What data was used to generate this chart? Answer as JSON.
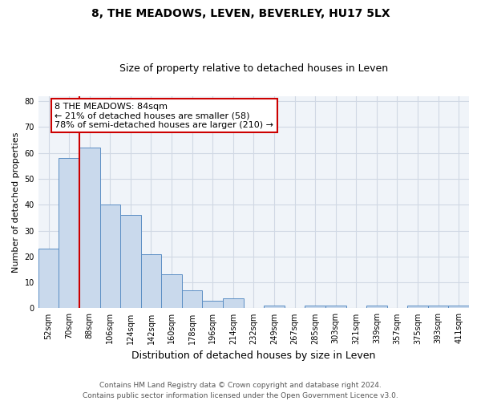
{
  "title": "8, THE MEADOWS, LEVEN, BEVERLEY, HU17 5LX",
  "subtitle": "Size of property relative to detached houses in Leven",
  "xlabel": "Distribution of detached houses by size in Leven",
  "ylabel": "Number of detached properties",
  "bar_labels": [
    "52sqm",
    "70sqm",
    "88sqm",
    "106sqm",
    "124sqm",
    "142sqm",
    "160sqm",
    "178sqm",
    "196sqm",
    "214sqm",
    "232sqm",
    "249sqm",
    "267sqm",
    "285sqm",
    "303sqm",
    "321sqm",
    "339sqm",
    "357sqm",
    "375sqm",
    "393sqm",
    "411sqm"
  ],
  "bar_heights": [
    23,
    58,
    62,
    40,
    36,
    21,
    13,
    7,
    3,
    4,
    0,
    1,
    0,
    1,
    1,
    0,
    1,
    0,
    1,
    1,
    1
  ],
  "bar_color": "#c9d9ec",
  "bar_edge_color": "#5b8ec4",
  "red_line_index": 2,
  "red_line_color": "#cc0000",
  "annotation_text": "8 THE MEADOWS: 84sqm\n← 21% of detached houses are smaller (58)\n78% of semi-detached houses are larger (210) →",
  "annotation_box_color": "#ffffff",
  "annotation_box_edge_color": "#cc0000",
  "ylim": [
    0,
    82
  ],
  "yticks": [
    0,
    10,
    20,
    30,
    40,
    50,
    60,
    70,
    80
  ],
  "grid_color": "#d0d8e4",
  "footer_text": "Contains HM Land Registry data © Crown copyright and database right 2024.\nContains public sector information licensed under the Open Government Licence v3.0.",
  "title_fontsize": 10,
  "subtitle_fontsize": 9,
  "xlabel_fontsize": 9,
  "ylabel_fontsize": 8,
  "tick_fontsize": 7,
  "annotation_fontsize": 8,
  "footer_fontsize": 6.5
}
